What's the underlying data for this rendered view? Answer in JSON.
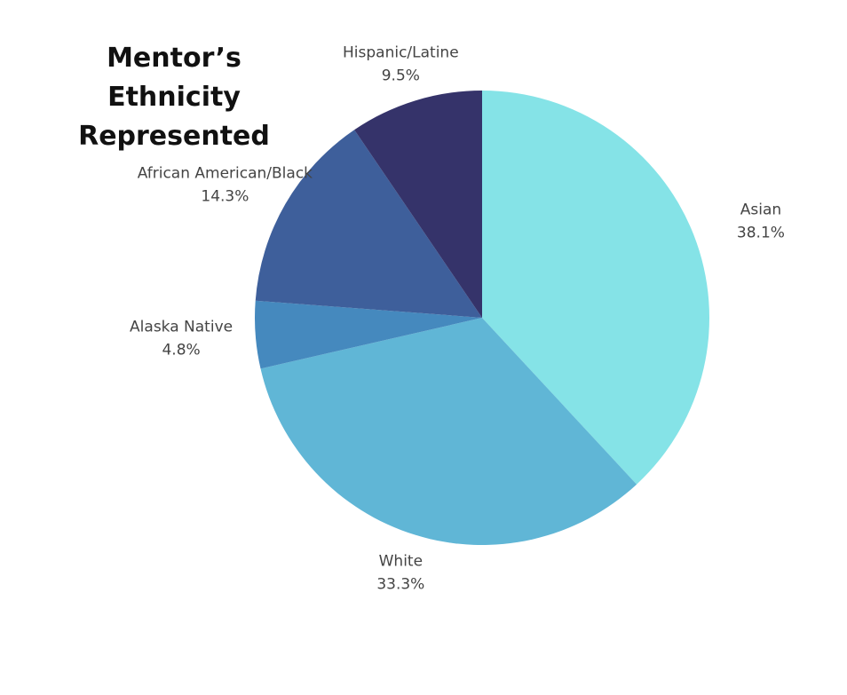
{
  "chart_data": {
    "type": "pie",
    "title": "Mentor’s Ethnicity Represented",
    "categories": [
      "Asian",
      "White",
      "Alaska Native",
      "African American/Black",
      "Hispanic/Latine"
    ],
    "values": [
      38.1,
      33.3,
      4.8,
      14.3,
      9.5
    ],
    "value_labels": [
      "38.1%",
      "33.3%",
      "4.8%",
      "14.3%",
      "9.5%"
    ],
    "colors": [
      "#85e3e7",
      "#60b6d6",
      "#4589be",
      "#3e5f9b",
      "#35336a"
    ]
  }
}
